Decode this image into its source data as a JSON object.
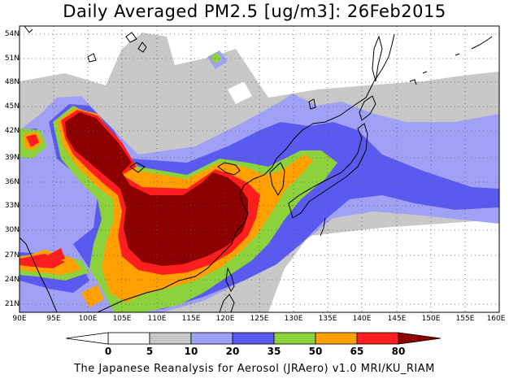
{
  "title": "Daily Averaged PM2.5 [ug/m3]: 26Feb2015",
  "footer": "The Japanese Reanalysis for Aerosol (JRAero) v1.0 MRI/KU_RIAM",
  "map": {
    "lat_labels": [
      "54N",
      "51N",
      "48N",
      "45N",
      "42N",
      "39N",
      "36N",
      "33N",
      "30N",
      "27N",
      "24N",
      "21N"
    ],
    "lon_labels": [
      "90E",
      "95E",
      "100E",
      "105E",
      "110E",
      "115E",
      "120E",
      "125E",
      "130E",
      "135E",
      "140E",
      "145E",
      "150E",
      "155E",
      "160E"
    ],
    "grid": "dotted",
    "coastline_color": "#000000"
  },
  "colorbar": {
    "levels": [
      "0",
      "5",
      "10",
      "20",
      "35",
      "50",
      "65",
      "80"
    ],
    "colors": [
      "#ffffff",
      "#c8c8c8",
      "#a0a0f5",
      "#5a5af0",
      "#8cd23c",
      "#ffa000",
      "#ff1e1e",
      "#8c0000"
    ],
    "unit": "ug/m3"
  }
}
